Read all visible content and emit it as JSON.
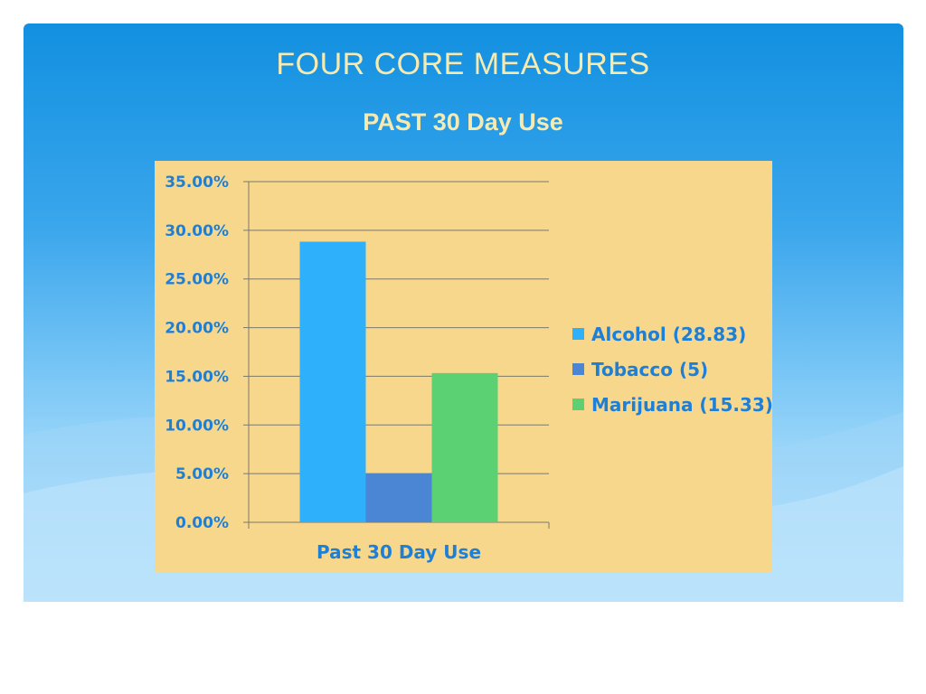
{
  "slide": {
    "title": "FOUR CORE MEASURES",
    "subtitle": "PAST 30 Day Use"
  },
  "colors": {
    "title_text": "#f7eab0",
    "chart_background": "#f7d78c",
    "label_text": "#1e7fd6",
    "gridline": "#7a7a6a"
  },
  "chart_data": {
    "type": "bar",
    "categories": [
      "Past 30 Day Use"
    ],
    "series": [
      {
        "name": "Alcohol (28.83)",
        "values": [
          28.83
        ],
        "color": "#2eb0fb"
      },
      {
        "name": "Tobacco (5)",
        "values": [
          5.0
        ],
        "color": "#4a86d4"
      },
      {
        "name": "Marijuana (15.33)",
        "values": [
          15.33
        ],
        "color": "#5bd174"
      }
    ],
    "ylim": [
      0,
      35
    ],
    "yticks": [
      0,
      5,
      10,
      15,
      20,
      25,
      30,
      35
    ],
    "ytick_labels": [
      "0.00%",
      "5.00%",
      "10.00%",
      "15.00%",
      "20.00%",
      "25.00%",
      "30.00%",
      "35.00%"
    ],
    "xlabel": "Past 30 Day Use",
    "ylabel": "",
    "grid": true,
    "legend_position": "right"
  }
}
